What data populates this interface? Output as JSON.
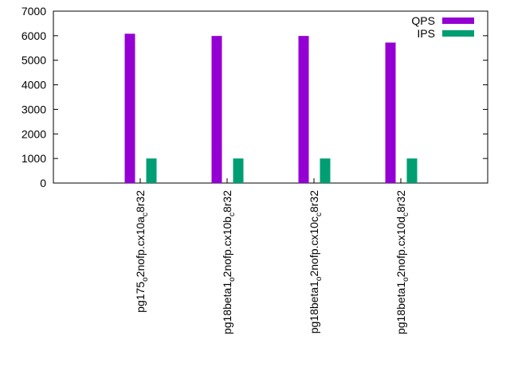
{
  "chart_data": {
    "type": "bar",
    "categories": [
      {
        "base": "pg175",
        "sub1": "o",
        "mid": "2nofp.cx10a",
        "sub2": "c",
        "tail": "8r32"
      },
      {
        "base": "pg18beta1",
        "sub1": "o",
        "mid": "2nofp.cx10b",
        "sub2": "c",
        "tail": "8r32"
      },
      {
        "base": "pg18beta1",
        "sub1": "o",
        "mid": "2nofp.cx10c",
        "sub2": "c",
        "tail": "8r32"
      },
      {
        "base": "pg18beta1",
        "sub1": "o",
        "mid": "2nofp.cx10d",
        "sub2": "c",
        "tail": "8r32"
      }
    ],
    "series": [
      {
        "name": "QPS",
        "color": "#9400d3",
        "values": [
          6080,
          5990,
          5990,
          5720
        ]
      },
      {
        "name": "IPS",
        "color": "#009e73",
        "values": [
          1000,
          1000,
          1000,
          1000
        ]
      }
    ],
    "yticks": [
      0,
      1000,
      2000,
      3000,
      4000,
      5000,
      6000,
      7000
    ],
    "ylim": [
      0,
      7000
    ],
    "grid": false,
    "legend_position": "top-right"
  }
}
